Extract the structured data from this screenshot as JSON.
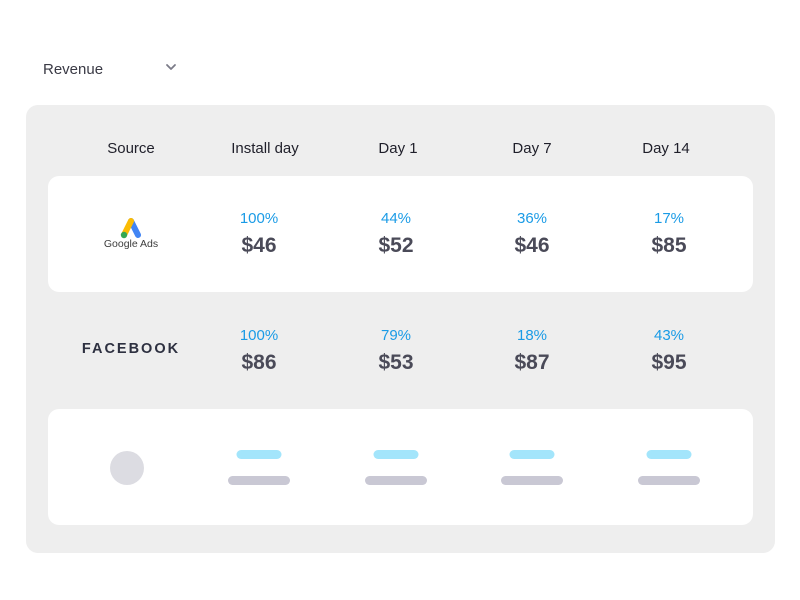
{
  "metric_select": {
    "selected": "Revenue",
    "chevron_icon": "chevron-down-icon"
  },
  "table": {
    "headers": [
      "Source",
      "Install day",
      "Day 1",
      "Day 7",
      "Day 14"
    ],
    "rows": [
      {
        "source": "Google Ads",
        "source_type": "logo",
        "cells": [
          {
            "pct": "100%",
            "amount": "$46"
          },
          {
            "pct": "44%",
            "amount": "$52"
          },
          {
            "pct": "36%",
            "amount": "$46"
          },
          {
            "pct": "17%",
            "amount": "$85"
          }
        ]
      },
      {
        "source": "FACEBOOK",
        "source_type": "wordmark",
        "cells": [
          {
            "pct": "100%",
            "amount": "$86"
          },
          {
            "pct": "79%",
            "amount": "$53"
          },
          {
            "pct": "18%",
            "amount": "$87"
          },
          {
            "pct": "43%",
            "amount": "$95"
          }
        ]
      }
    ],
    "skeleton_row_cells": 4
  },
  "colors": {
    "accent_blue": "#1a9be6",
    "amount_text": "#4a4a58",
    "panel_bg": "#eeeeee",
    "skeleton_blue": "#a3e5fb",
    "skeleton_gray": "#c9c8d4",
    "google_blue": "#4285f4",
    "google_yellow": "#fbbc04",
    "google_green": "#34a853"
  }
}
